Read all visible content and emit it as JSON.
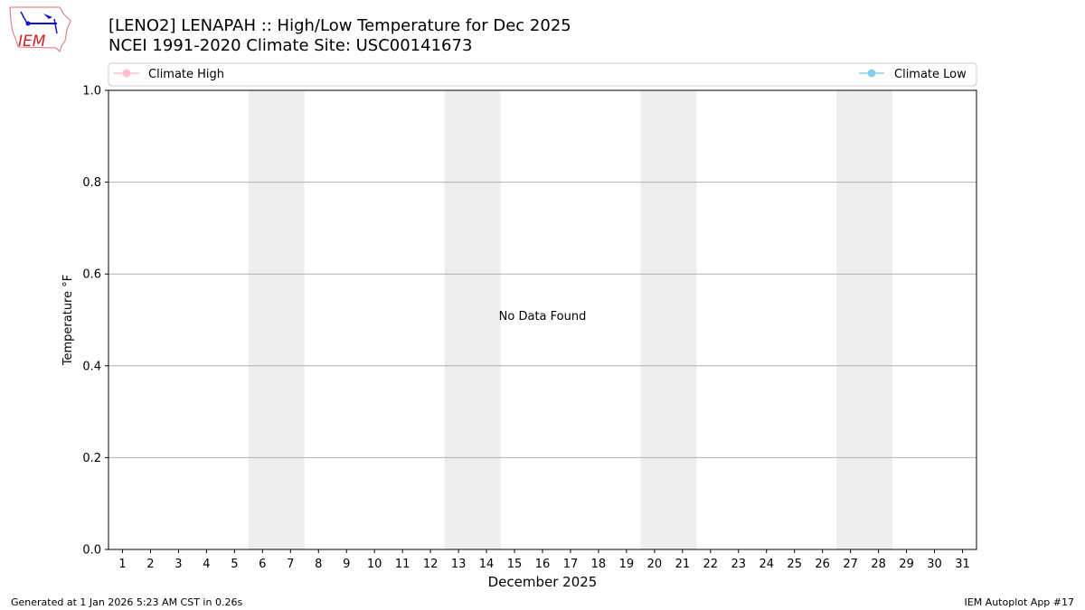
{
  "header": {
    "title_line1": "[LENO2] LENAPAH :: High/Low Temperature for Dec 2025",
    "title_line2": "NCEI 1991-2020 Climate Site: USC00141673",
    "logo_text": "IEM"
  },
  "footer": {
    "left": "Generated at 1 Jan 2026 5:23 AM CST in 0.26s",
    "right": "IEM Autoplot App #17"
  },
  "chart_data": {
    "type": "line",
    "xlabel": "December 2025",
    "ylabel": "Temperature °F",
    "xlim": [
      0.5,
      31.5
    ],
    "ylim": [
      0,
      1
    ],
    "x_ticks": [
      1,
      2,
      3,
      4,
      5,
      6,
      7,
      8,
      9,
      10,
      11,
      12,
      13,
      14,
      15,
      16,
      17,
      18,
      19,
      20,
      21,
      22,
      23,
      24,
      25,
      26,
      27,
      28,
      29,
      30,
      31
    ],
    "y_ticks": [
      "0.0",
      "0.2",
      "0.4",
      "0.6",
      "0.8",
      "1.0"
    ],
    "grid": "horizontal",
    "weekend_shading": [
      [
        5.5,
        7.5
      ],
      [
        12.5,
        14.5
      ],
      [
        19.5,
        21.5
      ],
      [
        26.5,
        28.5
      ]
    ],
    "annotation": "No Data Found",
    "legend_placement": "top",
    "series": [
      {
        "name": "Climate High",
        "color": "#ffc0cb",
        "values": []
      },
      {
        "name": "Climate Low",
        "color": "#87ceeb",
        "values": []
      }
    ]
  }
}
